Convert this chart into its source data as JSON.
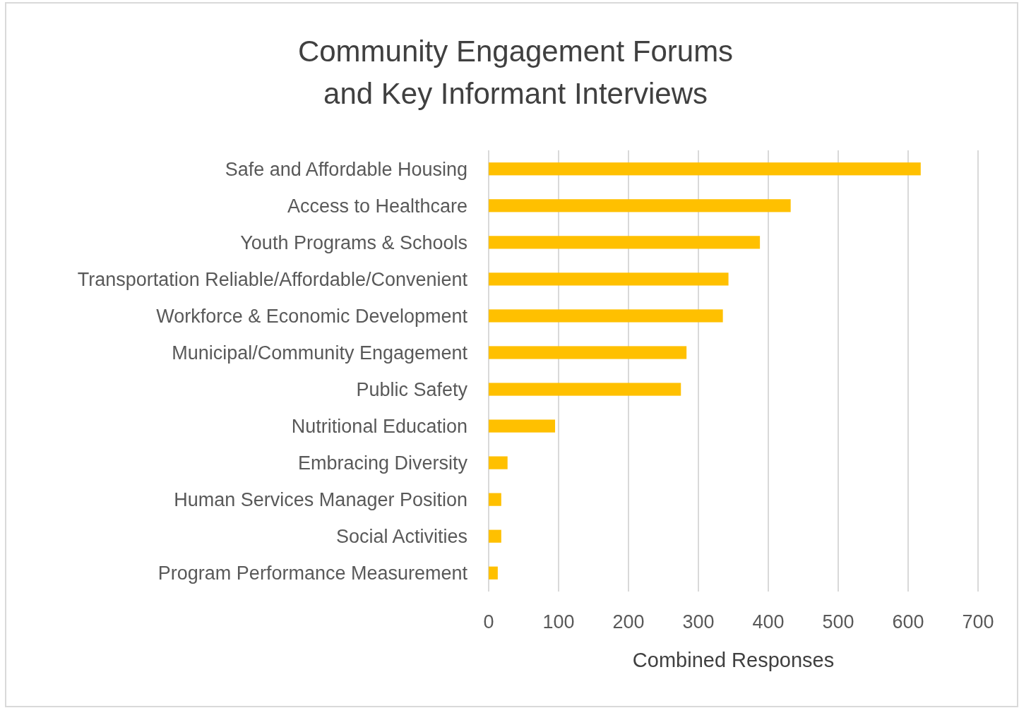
{
  "chart_data": {
    "type": "bar",
    "orientation": "horizontal",
    "title": "Community Engagement Forums\nand Key Informant Interviews",
    "xlabel": "Combined Responses",
    "categories": [
      "Safe and Affordable Housing",
      "Access to Healthcare",
      "Youth Programs & Schools",
      "Transportation Reliable/Affordable/Convenient",
      "Workforce & Economic Development",
      "Municipal/Community Engagement",
      "Public Safety",
      "Nutritional Education",
      "Embracing Diversity",
      "Human Services Manager Position",
      "Social Activities",
      "Program Performance Measurement"
    ],
    "values": [
      618,
      432,
      388,
      343,
      335,
      283,
      275,
      95,
      27,
      18,
      18,
      13
    ],
    "color": "#ffc000",
    "xlim": [
      0,
      700
    ],
    "xticks": [
      0,
      100,
      200,
      300,
      400,
      500,
      600,
      700
    ],
    "grid": "x"
  }
}
